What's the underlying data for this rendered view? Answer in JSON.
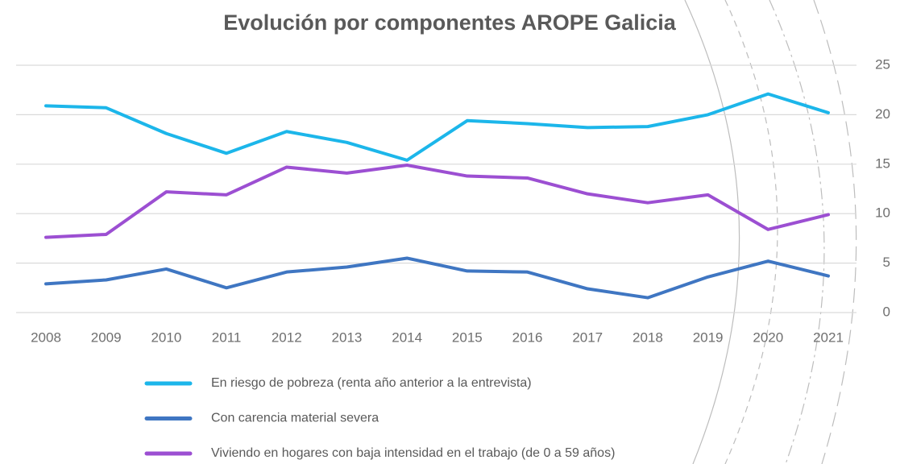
{
  "chart_data": {
    "type": "line",
    "title": "Evolución por componentes AROPE Galicia",
    "categories": [
      "2008",
      "2009",
      "2010",
      "2011",
      "2012",
      "2013",
      "2014",
      "2015",
      "2016",
      "2017",
      "2018",
      "2019",
      "2020",
      "2021"
    ],
    "series": [
      {
        "name": "En riesgo de pobreza (renta año anterior a la entrevista)",
        "color": "#1cb6ea",
        "values": [
          20.9,
          20.7,
          18.1,
          16.1,
          18.3,
          17.2,
          15.4,
          19.4,
          19.1,
          18.7,
          18.8,
          20.0,
          22.1,
          20.2
        ]
      },
      {
        "name": "Con carencia material severa",
        "color": "#3f76c2",
        "values": [
          2.9,
          3.3,
          4.4,
          2.5,
          4.1,
          4.6,
          5.5,
          4.2,
          4.1,
          2.4,
          1.5,
          3.6,
          5.2,
          3.7
        ]
      },
      {
        "name": "Viviendo en hogares con baja intensidad en el trabajo (de 0 a 59 años)",
        "color": "#9c4fd2",
        "values": [
          7.6,
          7.9,
          12.2,
          11.9,
          14.7,
          14.1,
          14.9,
          13.8,
          13.6,
          12.0,
          11.1,
          11.9,
          8.4,
          9.9
        ]
      }
    ],
    "ylim": [
      0,
      25
    ],
    "yticks": [
      0,
      5,
      10,
      15,
      20,
      25
    ],
    "grid": true,
    "legend": "bottom"
  }
}
